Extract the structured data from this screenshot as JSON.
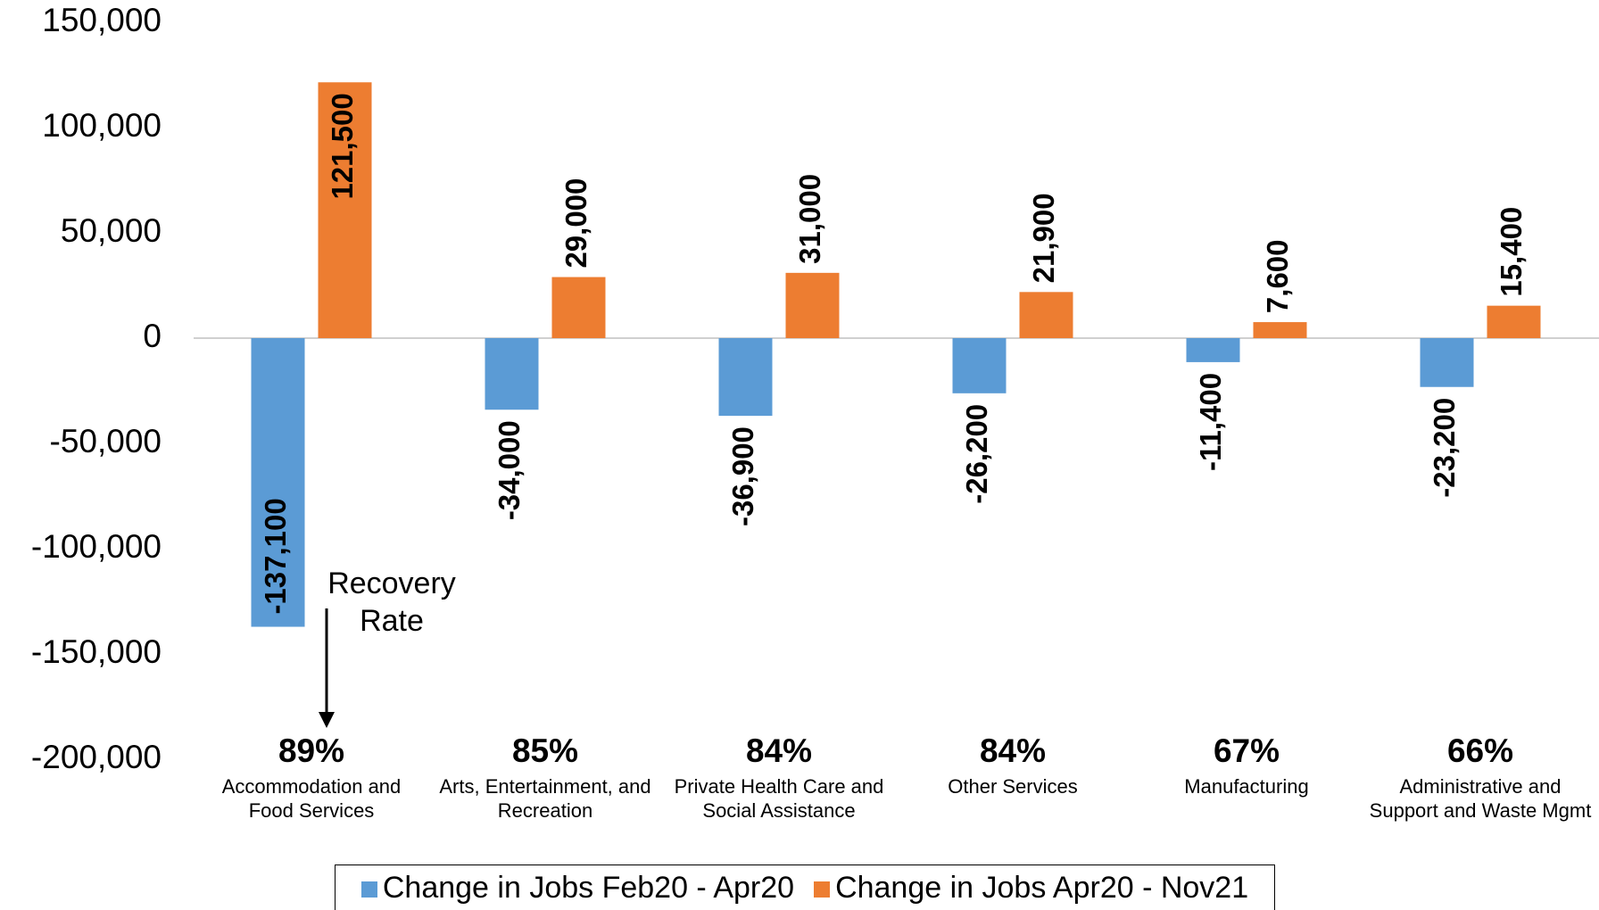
{
  "chart_data": {
    "type": "bar",
    "categories": [
      "Accommodation and Food Services",
      "Arts, Entertainment, and Recreation",
      "Private Health Care and Social Assistance",
      "Other Services",
      "Manufacturing",
      "Administrative and Support and Waste Mgmt"
    ],
    "recovery_rates": [
      "89%",
      "85%",
      "84%",
      "84%",
      "67%",
      "66%"
    ],
    "series": [
      {
        "name": "Change in Jobs Feb20 - Apr20",
        "color": "#5b9bd5",
        "values": [
          -137100,
          -34000,
          -36900,
          -26200,
          -11400,
          -23200
        ],
        "value_labels": [
          "-137,100",
          "-34,000",
          "-36,900",
          "-26,200",
          "-11,400",
          "-23,200"
        ]
      },
      {
        "name": "Change in Jobs Apr20 - Nov21",
        "color": "#ed7d31",
        "values": [
          121500,
          29000,
          31000,
          21900,
          7600,
          15400
        ],
        "value_labels": [
          "121,500",
          "29,000",
          "31,000",
          "21,900",
          "7,600",
          "15,400"
        ]
      }
    ],
    "annotation": "Recovery Rate",
    "ylim": [
      -200000,
      150000
    ],
    "yticks": [
      {
        "value": -200000,
        "label": "-200,000"
      },
      {
        "value": -150000,
        "label": "-150,000"
      },
      {
        "value": -100000,
        "label": "-100,000"
      },
      {
        "value": -50000,
        "label": "-50,000"
      },
      0,
      {
        "value": 50000,
        "label": "50,000"
      },
      {
        "value": 100000,
        "label": "100,000"
      },
      {
        "value": 150000,
        "label": "150,000"
      }
    ],
    "grid": false,
    "legend": "bottom"
  }
}
